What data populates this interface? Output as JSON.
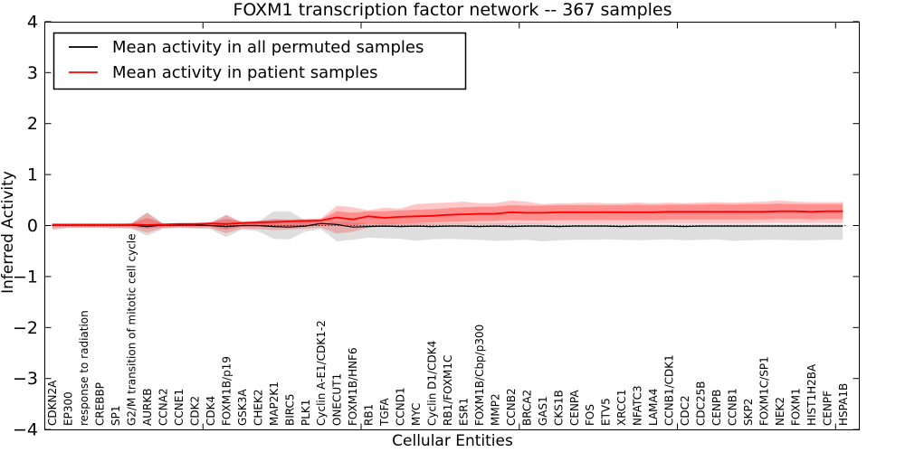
{
  "figure": {
    "title": "FOXM1 transcription factor network -- 367 samples",
    "xlabel": "Cellular Entities",
    "ylabel": "Inferred Activity"
  },
  "legend": {
    "entries": [
      {
        "label": "Mean activity in all permuted samples",
        "color": "#000000"
      },
      {
        "label": "Mean activity in patient samples",
        "color": "#ff0000"
      }
    ]
  },
  "axes": {
    "ylim": [
      -4,
      4
    ],
    "yticks": [
      {
        "value": 4,
        "label": "4"
      },
      {
        "value": 3,
        "label": "3"
      },
      {
        "value": 2,
        "label": "2"
      },
      {
        "value": 1,
        "label": "1"
      },
      {
        "value": 0,
        "label": "0"
      },
      {
        "value": -1,
        "label": "−1"
      },
      {
        "value": -2,
        "label": "−2"
      },
      {
        "value": -3,
        "label": "−3"
      },
      {
        "value": -4,
        "label": "−4"
      }
    ],
    "xmajor_values": [
      0,
      10,
      20,
      30,
      40,
      50
    ],
    "xlim": [
      0,
      51.5
    ],
    "grid": false
  },
  "colors": {
    "permuted_line": "#000000",
    "patient_line": "#ff0000",
    "permuted_band": "rgba(0,0,0,0.13)",
    "patient_band_outer": "rgba(255,0,0,0.22)",
    "patient_band_inner": "rgba(255,0,0,0.28)",
    "zero_line": "#000000",
    "spine": "#000000"
  },
  "chart_data": {
    "type": "line",
    "title": "FOXM1 transcription factor network -- 367 samples",
    "xlabel": "Cellular Entities",
    "ylabel": "Inferred Activity",
    "ylim": [
      -4,
      4
    ],
    "legend_position": "upper left",
    "categories": [
      "CDKN2A",
      "EP300",
      "response to radiation",
      "CREBBP",
      "SP1",
      "G2/M transition of mitotic cell cycle",
      "AURKB",
      "CCNA2",
      "CCNE1",
      "CDK2",
      "CDK4",
      "FOXM1B/p19",
      "GSK3A",
      "CHEK2",
      "MAP2K1",
      "BIRC5",
      "PLK1",
      "Cyclin A-E1/CDK1-2",
      "ONECUT1",
      "FOXM1B/HNF6",
      "RB1",
      "TGFA",
      "CCND1",
      "MYC",
      "Cyclin D1/CDK4",
      "RB1/FOXM1C",
      "ESR1",
      "FOXM1B/Cbp/p300",
      "MMP2",
      "CCNB2",
      "BRCA2",
      "GAS1",
      "CKS1B",
      "CENPA",
      "FOS",
      "ETV5",
      "XRCC1",
      "NFATC3",
      "LAMA4",
      "CCNB1/CDK1",
      "CDC2",
      "CDC25B",
      "CENPB",
      "CCNB1",
      "SKP2",
      "FOXM1C/SP1",
      "NEK2",
      "FOXM1",
      "HIST1H2BA",
      "CENPF",
      "HSPA1B"
    ],
    "series": [
      {
        "name": "Mean activity in all permuted samples",
        "color": "#000000",
        "width": 1.2,
        "values": [
          0.01,
          0.01,
          0.01,
          0.01,
          0.01,
          0.01,
          -0.02,
          0.01,
          0.01,
          0.01,
          0.0,
          -0.02,
          0.0,
          0.0,
          -0.02,
          -0.03,
          -0.01,
          0.04,
          0.02,
          -0.03,
          -0.02,
          -0.01,
          -0.02,
          -0.01,
          -0.02,
          -0.01,
          -0.01,
          -0.02,
          -0.01,
          -0.02,
          -0.01,
          -0.01,
          -0.02,
          -0.01,
          -0.01,
          -0.01,
          -0.02,
          -0.01,
          -0.01,
          -0.01,
          -0.02,
          -0.01,
          -0.01,
          -0.01,
          -0.01,
          -0.01,
          -0.01,
          -0.01,
          -0.01,
          -0.01,
          -0.01
        ]
      },
      {
        "name": "Mean activity in patient samples",
        "color": "#ff0000",
        "width": 1.8,
        "values": [
          0.02,
          0.02,
          0.02,
          0.02,
          0.02,
          0.02,
          0.01,
          0.02,
          0.03,
          0.03,
          0.04,
          0.03,
          0.05,
          0.06,
          0.07,
          0.08,
          0.09,
          0.1,
          0.16,
          0.12,
          0.18,
          0.15,
          0.17,
          0.18,
          0.19,
          0.21,
          0.22,
          0.23,
          0.23,
          0.26,
          0.25,
          0.25,
          0.26,
          0.26,
          0.26,
          0.26,
          0.26,
          0.26,
          0.26,
          0.27,
          0.27,
          0.27,
          0.27,
          0.27,
          0.27,
          0.27,
          0.28,
          0.28,
          0.27,
          0.28,
          0.28
        ]
      }
    ],
    "bands": [
      {
        "name": "permuted-range",
        "color": "rgba(0,0,0,0.13)",
        "lower": [
          -0.09,
          -0.05,
          -0.05,
          -0.05,
          -0.06,
          -0.06,
          -0.2,
          -0.07,
          -0.05,
          -0.06,
          -0.07,
          -0.23,
          -0.08,
          -0.11,
          -0.26,
          -0.27,
          -0.12,
          -0.07,
          -0.31,
          -0.28,
          -0.24,
          -0.25,
          -0.26,
          -0.3,
          -0.27,
          -0.26,
          -0.27,
          -0.28,
          -0.3,
          -0.29,
          -0.28,
          -0.31,
          -0.29,
          -0.28,
          -0.28,
          -0.27,
          -0.28,
          -0.29,
          -0.28,
          -0.27,
          -0.29,
          -0.28,
          -0.27,
          -0.3,
          -0.29,
          -0.28,
          -0.28,
          -0.29,
          -0.29,
          -0.28,
          -0.28
        ],
        "upper": [
          0.04,
          0.03,
          0.03,
          0.03,
          0.04,
          0.04,
          0.26,
          0.04,
          0.03,
          0.04,
          0.05,
          0.21,
          0.05,
          0.07,
          0.28,
          0.28,
          0.1,
          0.06,
          0.08,
          0.06,
          0.05,
          0.05,
          0.05,
          0.05,
          0.04,
          0.04,
          0.04,
          0.04,
          0.04,
          0.04,
          0.04,
          0.03,
          0.03,
          0.03,
          0.03,
          0.03,
          0.03,
          0.03,
          0.03,
          0.03,
          0.03,
          0.03,
          0.03,
          0.03,
          0.03,
          0.03,
          0.03,
          0.03,
          0.03,
          0.03,
          0.03
        ]
      },
      {
        "name": "patient-range-outer",
        "color": "rgba(255,0,0,0.22)",
        "lower": [
          -0.06,
          -0.04,
          -0.04,
          -0.04,
          -0.04,
          -0.05,
          -0.14,
          -0.05,
          -0.04,
          -0.05,
          -0.05,
          -0.15,
          -0.06,
          -0.07,
          -0.09,
          -0.08,
          -0.06,
          -0.04,
          -0.16,
          -0.12,
          -0.04,
          0.0,
          0.0,
          0.01,
          0.01,
          0.02,
          0.02,
          0.02,
          0.02,
          0.02,
          0.03,
          0.02,
          0.03,
          0.03,
          0.03,
          0.03,
          0.03,
          0.03,
          0.04,
          0.04,
          0.04,
          0.04,
          0.04,
          0.04,
          0.04,
          0.05,
          0.05,
          0.05,
          0.05,
          0.05,
          0.05
        ],
        "upper": [
          0.03,
          0.03,
          0.03,
          0.03,
          0.03,
          0.04,
          0.25,
          0.04,
          0.04,
          0.05,
          0.06,
          0.21,
          0.07,
          0.09,
          0.13,
          0.12,
          0.13,
          0.14,
          0.39,
          0.36,
          0.3,
          0.35,
          0.33,
          0.42,
          0.44,
          0.45,
          0.47,
          0.44,
          0.44,
          0.49,
          0.47,
          0.42,
          0.44,
          0.44,
          0.45,
          0.44,
          0.44,
          0.45,
          0.44,
          0.45,
          0.44,
          0.45,
          0.46,
          0.45,
          0.46,
          0.47,
          0.49,
          0.47,
          0.46,
          0.46,
          0.46
        ]
      },
      {
        "name": "patient-range-inner",
        "color": "rgba(255,0,0,0.28)",
        "lower": [
          -0.02,
          -0.02,
          -0.02,
          -0.02,
          -0.02,
          -0.02,
          -0.06,
          -0.03,
          -0.02,
          -0.02,
          -0.02,
          -0.08,
          -0.02,
          -0.02,
          -0.03,
          -0.03,
          -0.02,
          0.0,
          0.02,
          0.0,
          0.04,
          0.03,
          0.04,
          0.05,
          0.06,
          0.07,
          0.08,
          0.09,
          0.09,
          0.11,
          0.1,
          0.1,
          0.11,
          0.11,
          0.11,
          0.11,
          0.11,
          0.11,
          0.11,
          0.12,
          0.12,
          0.12,
          0.12,
          0.12,
          0.12,
          0.12,
          0.13,
          0.13,
          0.12,
          0.13,
          0.13
        ],
        "upper": [
          0.03,
          0.03,
          0.03,
          0.03,
          0.03,
          0.04,
          0.15,
          0.04,
          0.05,
          0.05,
          0.06,
          0.13,
          0.08,
          0.09,
          0.11,
          0.11,
          0.12,
          0.13,
          0.28,
          0.25,
          0.28,
          0.28,
          0.3,
          0.31,
          0.32,
          0.34,
          0.36,
          0.37,
          0.37,
          0.4,
          0.39,
          0.39,
          0.4,
          0.4,
          0.4,
          0.4,
          0.4,
          0.41,
          0.4,
          0.41,
          0.41,
          0.41,
          0.42,
          0.41,
          0.42,
          0.42,
          0.43,
          0.42,
          0.42,
          0.42,
          0.42
        ]
      }
    ],
    "zero_line": 0
  }
}
